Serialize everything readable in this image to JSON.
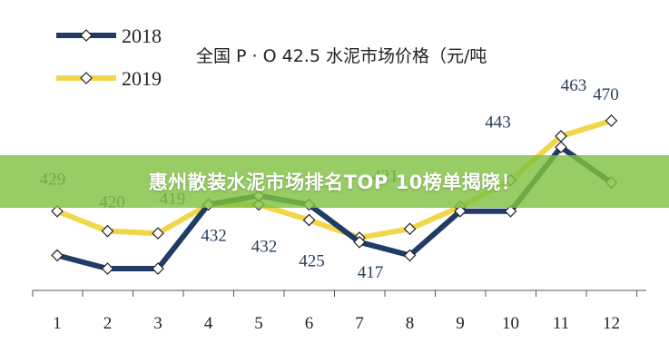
{
  "chart_data": {
    "type": "line",
    "title": "全国 P · O 42.5 水泥市场价格（元/吨",
    "x": [
      1,
      2,
      3,
      4,
      5,
      6,
      7,
      8,
      9,
      10,
      11,
      12
    ],
    "x_tick_labels": [
      "1",
      "2",
      "3",
      "4",
      "5",
      "6",
      "7",
      "8",
      "9",
      "10",
      "11",
      "12"
    ],
    "series": [
      {
        "name": "2018",
        "color": "#1f3b66",
        "values": [
          409,
          403,
          403,
          432,
          436,
          432,
          415,
          409,
          429,
          429,
          458,
          442
        ]
      },
      {
        "name": "2019",
        "color": "#f2d64a",
        "values": [
          429,
          420,
          419,
          432,
          432,
          425,
          417,
          421,
          431,
          443,
          463,
          470
        ]
      }
    ],
    "data_labels": [
      {
        "x": 1,
        "text": "429"
      },
      {
        "x": 2,
        "text": "420"
      },
      {
        "x": 3,
        "text": "419"
      },
      {
        "x": 4,
        "text": "432"
      },
      {
        "x": 5,
        "text": "432"
      },
      {
        "x": 6,
        "text": "425"
      },
      {
        "x": 7,
        "text": "417"
      },
      {
        "x": 8,
        "text": "421"
      },
      {
        "x": 10,
        "text": "443"
      },
      {
        "x": 11,
        "text": "463"
      },
      {
        "x": 12,
        "text": "470"
      }
    ],
    "legend_position": "top-left",
    "grid": false
  },
  "banner": {
    "text": "惠州散装水泥市场排名TOP 10榜单揭晓！"
  }
}
